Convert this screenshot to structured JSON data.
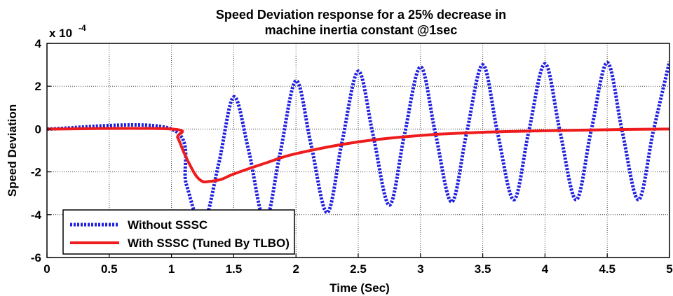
{
  "chart_data": {
    "type": "line",
    "title": "Speed Deviation response for a 25% decrease in",
    "subtitle": "machine inertia constant @1sec",
    "xlabel": "Time (Sec)",
    "ylabel": "Speed Deviation",
    "y_scale_label": "x 10",
    "y_scale_exponent": "-4",
    "xlim": [
      0,
      5
    ],
    "ylim": [
      -6,
      4
    ],
    "x_ticks": [
      "0",
      "0.5",
      "1",
      "1.5",
      "2",
      "2.5",
      "3",
      "3.5",
      "4",
      "4.5",
      "5"
    ],
    "y_ticks": [
      "4",
      "2",
      "0",
      "-2",
      "-4",
      "-6"
    ],
    "grid": true,
    "legend_position": "bottom-left",
    "series": [
      {
        "name": "Without SSSC",
        "color": "#1f1fe0",
        "style": "dotted",
        "x": [
          0,
          1.0,
          1.12,
          1.25,
          1.38,
          1.5,
          1.62,
          1.75,
          1.87,
          2.0,
          2.12,
          2.25,
          2.37,
          2.5,
          2.62,
          2.75,
          2.87,
          3.0,
          3.12,
          3.25,
          3.37,
          3.5,
          3.62,
          3.75,
          3.87,
          4.0,
          4.12,
          4.25,
          4.37,
          4.5,
          4.62,
          4.75,
          4.87,
          5.0
        ],
        "y": [
          0,
          0,
          -2.6,
          -4.5,
          -1.6,
          1.5,
          -1.0,
          -4.3,
          -1.2,
          2.25,
          -0.7,
          -3.9,
          -0.6,
          2.7,
          -0.3,
          -3.55,
          -0.3,
          2.9,
          -0.2,
          -3.4,
          -0.2,
          3.0,
          -0.2,
          -3.3,
          -0.1,
          3.05,
          -0.1,
          -3.3,
          -0.1,
          3.1,
          -0.1,
          -3.3,
          -0.1,
          3.15
        ]
      },
      {
        "name": "With SSSC (Tuned By TLBO)",
        "color": "#ee1c1c",
        "style": "solid",
        "x": [
          0,
          1.0,
          1.05,
          1.1,
          1.15,
          1.2,
          1.25,
          1.3,
          1.4,
          1.5,
          1.75,
          2.0,
          2.5,
          3.0,
          3.5,
          4.0,
          4.5,
          5.0
        ],
        "y": [
          0,
          0,
          -0.4,
          -1.1,
          -1.7,
          -2.2,
          -2.45,
          -2.45,
          -2.35,
          -2.1,
          -1.6,
          -1.15,
          -0.6,
          -0.3,
          -0.15,
          -0.08,
          -0.03,
          0
        ]
      }
    ]
  }
}
